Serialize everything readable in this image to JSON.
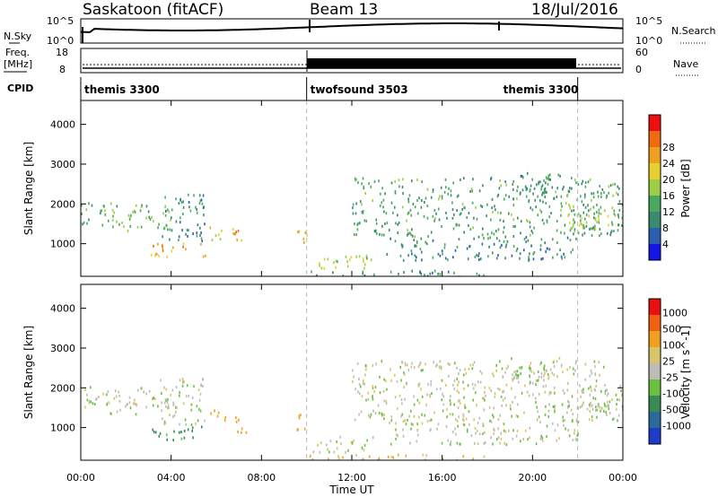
{
  "header": {
    "station": "Saskatoon (fitACF)",
    "beam": "Beam 13",
    "date": "18/Jul/2016"
  },
  "strip_labels": {
    "nsky": "N.Sky",
    "nsky_ticks": [
      "10^5",
      "10^0"
    ],
    "nsearch": "N.Search",
    "nsearch_ticks": [
      "10^5",
      "10^0"
    ],
    "freq": "Freq.",
    "freq_unit": "[MHz]",
    "freq_ticks": [
      "18",
      "8"
    ],
    "nave": "Nave",
    "nave_ticks": [
      "60",
      "0"
    ],
    "cpid": "CPID"
  },
  "cpid_segments": [
    {
      "label": "themis 3300",
      "start": 0,
      "end": 10
    },
    {
      "label": "twofsound 3503",
      "start": 10,
      "end": 22
    },
    {
      "label": "themis 3300",
      "start": 22,
      "end": 24
    }
  ],
  "colors": {
    "power": [
      "#1515e6",
      "#2a5fb0",
      "#3a8a6e",
      "#4aa860",
      "#9ccf45",
      "#e8d030",
      "#f0a020",
      "#f06a10",
      "#ee1010"
    ],
    "velocity": [
      "#1e3cc8",
      "#2a6a9a",
      "#3a8a55",
      "#6cc040",
      "#bdbdb8",
      "#d6c56a",
      "#f0a020",
      "#f06010",
      "#e81010"
    ]
  },
  "chart_data": [
    {
      "type": "heatmap",
      "panel": "power",
      "ylabel": "Slant Range [km]",
      "xlim": [
        0,
        24
      ],
      "ylim": [
        180,
        4600
      ],
      "yticks": [
        1000,
        2000,
        3000,
        4000
      ],
      "colorbar": {
        "label": "Power [dB]",
        "ticks": [
          "4",
          "8",
          "12",
          "16",
          "20",
          "24",
          "28"
        ]
      },
      "blobs": [
        {
          "t0": 0.0,
          "t1": 4.2,
          "r0": 1350,
          "r1": 2050,
          "val": 13
        },
        {
          "t0": 3.0,
          "t1": 5.5,
          "r0": 700,
          "r1": 1050,
          "val": 22
        },
        {
          "t0": 3.5,
          "t1": 5.5,
          "r0": 1100,
          "r1": 2300,
          "val": 9
        },
        {
          "t0": 5.7,
          "t1": 6.4,
          "r0": 1100,
          "r1": 1500,
          "val": 19
        },
        {
          "t0": 6.7,
          "t1": 7.3,
          "r0": 900,
          "r1": 1400,
          "val": 23
        },
        {
          "t0": 9.5,
          "t1": 10.0,
          "r0": 900,
          "r1": 1400,
          "val": 20
        },
        {
          "t0": 10.2,
          "t1": 13.0,
          "r0": 400,
          "r1": 800,
          "val": 17
        },
        {
          "t0": 10.0,
          "t1": 18.0,
          "r0": 180,
          "r1": 350,
          "val": 10
        },
        {
          "t0": 12.0,
          "t1": 24.0,
          "r0": 1200,
          "r1": 2700,
          "val": 11
        },
        {
          "t0": 13.5,
          "t1": 22.0,
          "r0": 600,
          "r1": 1200,
          "val": 9
        },
        {
          "t0": 21.5,
          "t1": 24.0,
          "r0": 1400,
          "r1": 2000,
          "val": 16
        },
        {
          "t0": 19.0,
          "t1": 21.5,
          "r0": 2300,
          "r1": 2800,
          "val": 10
        }
      ]
    },
    {
      "type": "heatmap",
      "panel": "velocity",
      "ylabel": "Slant Range [km]",
      "xlabel": "Time UT",
      "xlim": [
        0,
        24
      ],
      "ylim": [
        180,
        4600
      ],
      "yticks": [
        1000,
        2000,
        3000,
        4000
      ],
      "xticks": [
        "00:00",
        "04:00",
        "08:00",
        "12:00",
        "16:00",
        "20:00",
        "00:00"
      ],
      "colorbar": {
        "label": "Velocity [m s^-1]",
        "ticks": [
          "1000",
          "500",
          "100",
          "25",
          "-25",
          "-100",
          "-500",
          "-1000"
        ]
      },
      "blobs": [
        {
          "t0": 0.0,
          "t1": 4.2,
          "r0": 1350,
          "r1": 2050,
          "val": 0
        },
        {
          "t0": 3.0,
          "t1": 5.5,
          "r0": 700,
          "r1": 1050,
          "val": 150
        },
        {
          "t0": 3.5,
          "t1": 5.5,
          "r0": 1100,
          "r1": 2300,
          "val": 0
        },
        {
          "t0": 5.7,
          "t1": 6.4,
          "r0": 1100,
          "r1": 1500,
          "val": -300
        },
        {
          "t0": 6.7,
          "t1": 7.3,
          "r0": 900,
          "r1": 1400,
          "val": -400
        },
        {
          "t0": 9.5,
          "t1": 10.0,
          "r0": 900,
          "r1": 1400,
          "val": -350
        },
        {
          "t0": 10.2,
          "t1": 13.0,
          "r0": 400,
          "r1": 800,
          "val": 0
        },
        {
          "t0": 10.0,
          "t1": 18.0,
          "r0": 180,
          "r1": 350,
          "val": -120
        },
        {
          "t0": 12.0,
          "t1": 24.0,
          "r0": 1200,
          "r1": 2700,
          "val": 0
        },
        {
          "t0": 13.5,
          "t1": 22.0,
          "r0": 600,
          "r1": 1200,
          "val": 0
        },
        {
          "t0": 21.5,
          "t1": 24.0,
          "r0": 1400,
          "r1": 2000,
          "val": 0
        },
        {
          "t0": 19.0,
          "t1": 21.5,
          "r0": 2300,
          "r1": 2800,
          "val": 0
        }
      ]
    }
  ]
}
